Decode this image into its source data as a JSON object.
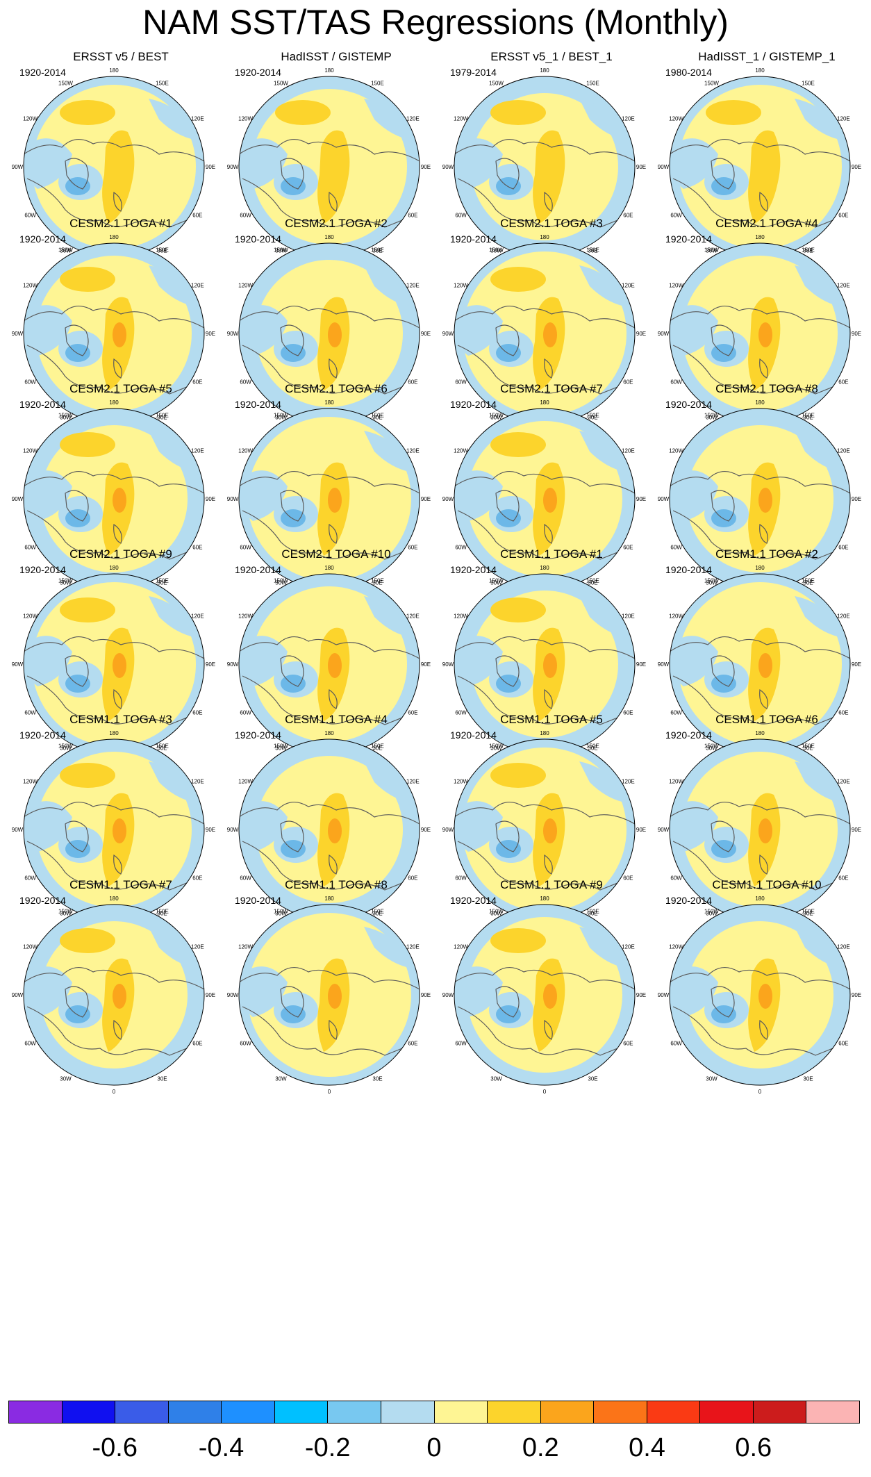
{
  "title": "NAM SST/TAS Regressions (Monthly)",
  "lon_labels": [
    "180",
    "150E",
    "120E",
    "90E",
    "60E",
    "30E",
    "0",
    "30W",
    "60W",
    "90W",
    "120W",
    "150W"
  ],
  "colors": {
    "neg_blue_dark": "#6cb8e8",
    "neg_blue": "#b4dcf0",
    "pos_yellow": "#fef594",
    "pos_gold": "#fcd42c",
    "pos_orange": "#fba51c",
    "coast": "#5a5a5a"
  },
  "panels": [
    {
      "title": "ERSST v5 / BEST",
      "years": "1920-2014"
    },
    {
      "title": "HadISST / GISTEMP",
      "years": "1920-2014"
    },
    {
      "title": "ERSST v5_1 / BEST_1",
      "years": "1979-2014"
    },
    {
      "title": "HadISST_1 / GISTEMP_1",
      "years": "1980-2014"
    },
    {
      "title": "CESM2.1 TOGA #1",
      "years": "1920-2014"
    },
    {
      "title": "CESM2.1 TOGA #2",
      "years": "1920-2014"
    },
    {
      "title": "CESM2.1 TOGA #3",
      "years": "1920-2014"
    },
    {
      "title": "CESM2.1 TOGA #4",
      "years": "1920-2014"
    },
    {
      "title": "CESM2.1 TOGA #5",
      "years": "1920-2014"
    },
    {
      "title": "CESM2.1 TOGA #6",
      "years": "1920-2014"
    },
    {
      "title": "CESM2.1 TOGA #7",
      "years": "1920-2014"
    },
    {
      "title": "CESM2.1 TOGA #8",
      "years": "1920-2014"
    },
    {
      "title": "CESM2.1 TOGA #9",
      "years": "1920-2014"
    },
    {
      "title": "CESM2.1 TOGA #10",
      "years": "1920-2014"
    },
    {
      "title": "CESM1.1 TOGA #1",
      "years": "1920-2014"
    },
    {
      "title": "CESM1.1 TOGA #2",
      "years": "1920-2014"
    },
    {
      "title": "CESM1.1 TOGA #3",
      "years": "1920-2014"
    },
    {
      "title": "CESM1.1 TOGA #4",
      "years": "1920-2014"
    },
    {
      "title": "CESM1.1 TOGA #5",
      "years": "1920-2014"
    },
    {
      "title": "CESM1.1 TOGA #6",
      "years": "1920-2014"
    },
    {
      "title": "CESM1.1 TOGA #7",
      "years": "1920-2014"
    },
    {
      "title": "CESM1.1 TOGA #8",
      "years": "1920-2014"
    },
    {
      "title": "CESM1.1 TOGA #9",
      "years": "1920-2014"
    },
    {
      "title": "CESM1.1 TOGA #10",
      "years": "1920-2014"
    }
  ],
  "colorbar": {
    "colors": [
      "#8a2be2",
      "#1010f0",
      "#3a5ce8",
      "#2f80e8",
      "#1e90ff",
      "#00c0ff",
      "#78c8f0",
      "#b4dcf0",
      "#fef594",
      "#fcd42c",
      "#fba51c",
      "#fb7418",
      "#fa3a14",
      "#e8141a",
      "#cc1c1c",
      "#fbb4b4"
    ],
    "labels": [
      "-0.6",
      "-0.4",
      "-0.2",
      "0",
      "0.2",
      "0.4",
      "0.6"
    ]
  }
}
